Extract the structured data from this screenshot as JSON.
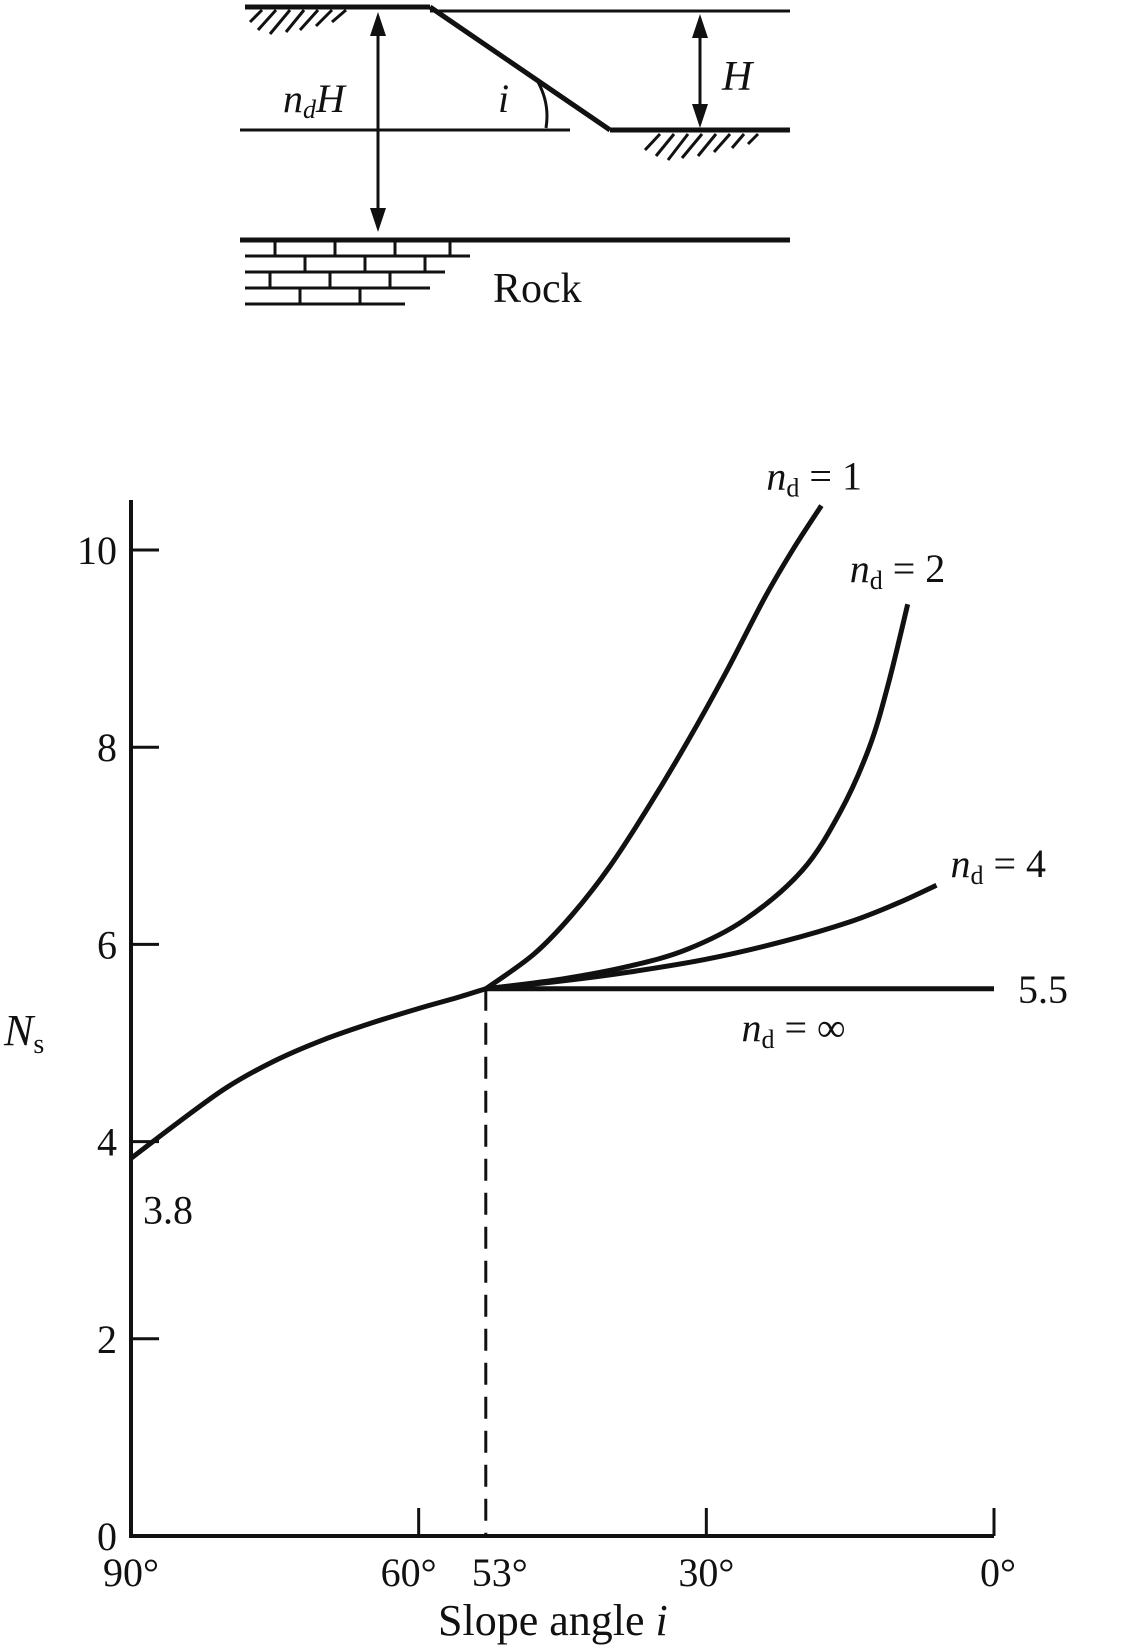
{
  "diagram": {
    "depth_label": "n",
    "depth_label_sub": "d",
    "depth_label_tail": "H",
    "angle_label": "i",
    "height_label": "H",
    "rock_label": "Rock"
  },
  "chart_data": {
    "type": "line",
    "title": "",
    "xlabel": "Slope angle",
    "xlabel_var": "i",
    "ylabel": "N",
    "ylabel_sub": "s",
    "x_reversed": true,
    "xlim": [
      90,
      0
    ],
    "ylim": [
      0,
      10.5
    ],
    "grid": false,
    "xticks": [
      {
        "value": 90,
        "label": "90°"
      },
      {
        "value": 60,
        "label": "60°"
      },
      {
        "value": 53,
        "label": "53°"
      },
      {
        "value": 30,
        "label": "30°"
      },
      {
        "value": 0,
        "label": "0°"
      }
    ],
    "yticks": [
      0,
      2,
      4,
      6,
      8,
      10
    ],
    "shared_curve": {
      "x": [
        90,
        85,
        80,
        75,
        70,
        65,
        60,
        56,
        53
      ],
      "y": [
        3.83,
        4.2,
        4.55,
        4.82,
        5.03,
        5.2,
        5.35,
        5.46,
        5.55
      ]
    },
    "series": [
      {
        "label_main": "n",
        "label_sub": "d",
        "label_value": " = 1",
        "x": [
          53,
          48,
          44,
          40,
          36,
          32,
          28,
          24,
          21,
          18
        ],
        "y": [
          5.55,
          5.9,
          6.3,
          6.8,
          7.4,
          8.05,
          8.75,
          9.5,
          10.0,
          10.45
        ]
      },
      {
        "label_main": "n",
        "label_sub": "d",
        "label_value": " = 2",
        "x": [
          53,
          45,
          38,
          32,
          26,
          20,
          16,
          13,
          11,
          9
        ],
        "y": [
          5.55,
          5.65,
          5.78,
          5.95,
          6.25,
          6.75,
          7.35,
          8.0,
          8.65,
          9.45
        ]
      },
      {
        "label_main": "n",
        "label_sub": "d",
        "label_value": " = 4",
        "x": [
          53,
          45,
          38,
          30,
          22,
          15,
          10,
          6
        ],
        "y": [
          5.55,
          5.63,
          5.72,
          5.85,
          6.03,
          6.23,
          6.42,
          6.6
        ]
      },
      {
        "label_main": "n",
        "label_sub": "d",
        "label_value": " = ∞",
        "x": [
          53,
          0
        ],
        "y": [
          5.55,
          5.55
        ]
      }
    ],
    "annotations": [
      {
        "text": "3.8",
        "x": 90,
        "y": 3.8
      },
      {
        "text": "5.5",
        "x": 0,
        "y": 5.55
      }
    ],
    "reference_line": {
      "x": 53,
      "style": "dashed"
    }
  }
}
